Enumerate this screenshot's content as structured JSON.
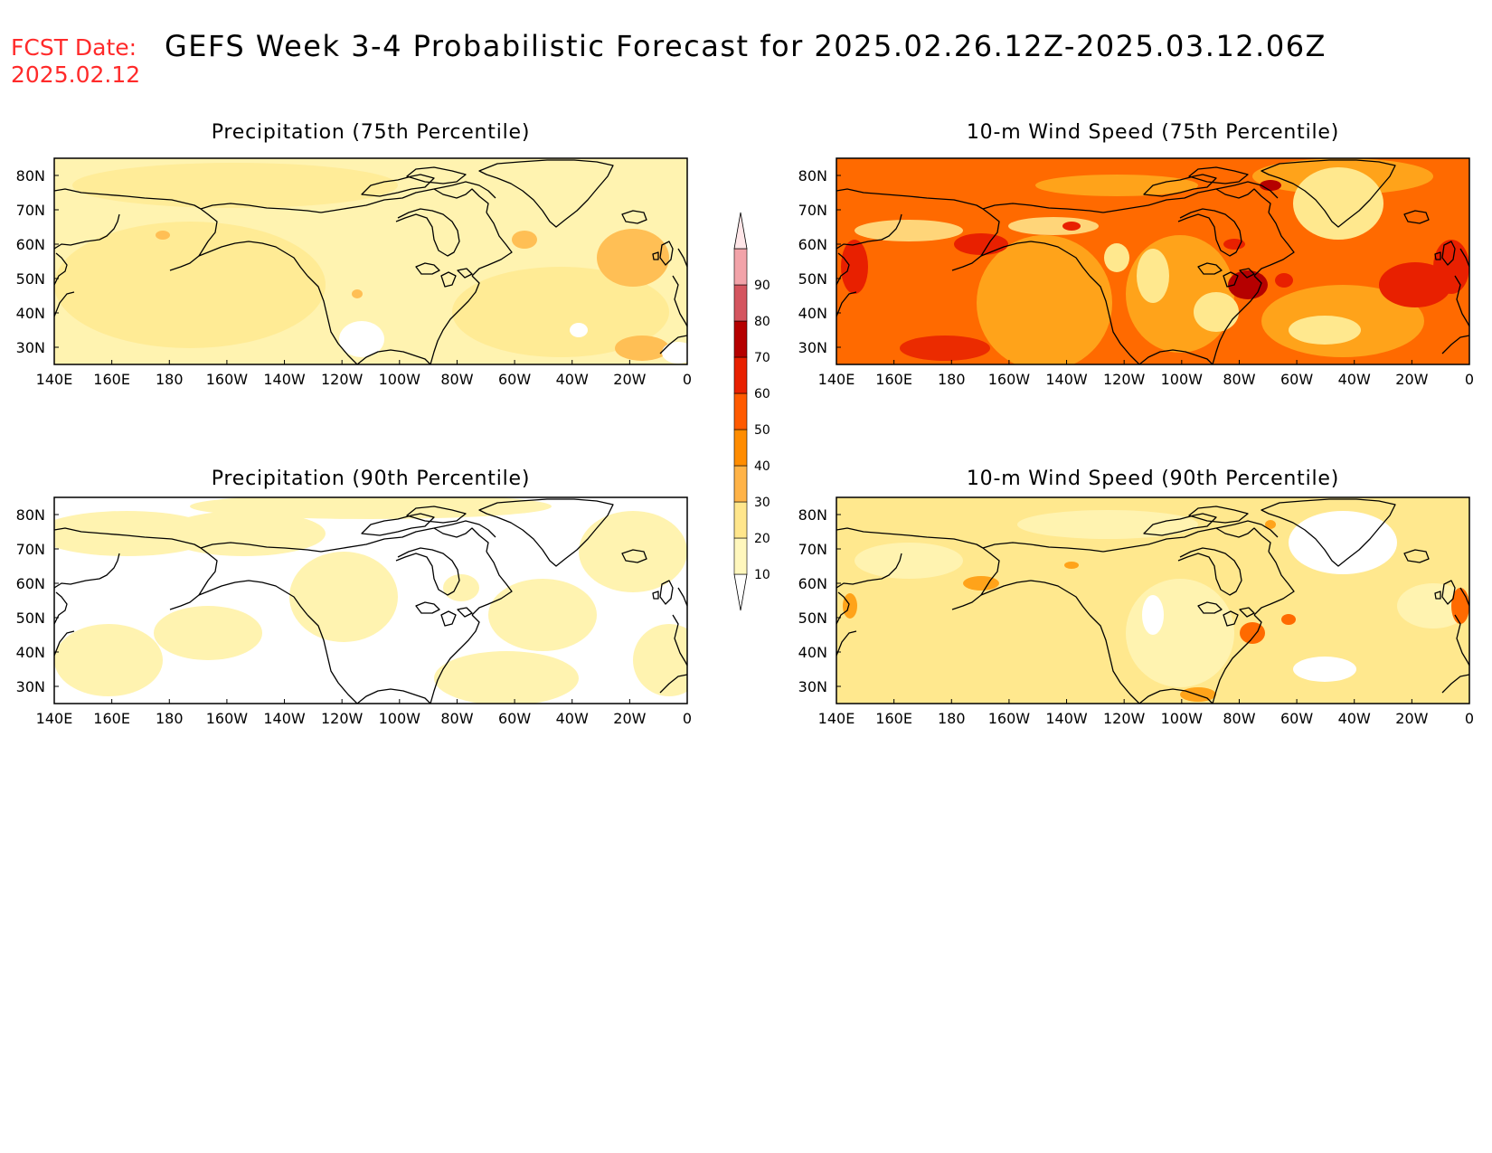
{
  "header": {
    "fcst_label": "FCST Date:",
    "fcst_date": "2025.02.12",
    "title": "GEFS Week 3-4 Probabilistic Forecast for 2025.02.26.12Z-2025.03.12.06Z"
  },
  "panels": [
    {
      "title": "Precipitation (75th Percentile)"
    },
    {
      "title": "10-m Wind Speed (75th Percentile)"
    },
    {
      "title": "Precipitation (90th Percentile)"
    },
    {
      "title": "10-m Wind Speed (90th Percentile)"
    }
  ],
  "axes": {
    "lon_labels": [
      "140E",
      "160E",
      "180",
      "160W",
      "140W",
      "120W",
      "100W",
      "80W",
      "60W",
      "40W",
      "20W",
      "0"
    ],
    "lat_labels": [
      "80N",
      "70N",
      "60N",
      "50N",
      "40N",
      "30N"
    ]
  },
  "colorbar": {
    "levels": [
      "10",
      "20",
      "30",
      "40",
      "50",
      "60",
      "70",
      "80",
      "90"
    ],
    "colors": [
      "#ffffff",
      "#fff7bd",
      "#ffe68c",
      "#ffb347",
      "#ff8c00",
      "#ff5a00",
      "#e82000",
      "#b50000",
      "#d4555f",
      "#f2a3a9",
      "#ffe6e8"
    ]
  },
  "colors": {
    "coast": "#000000",
    "header_red": "#ff2a2a"
  }
}
